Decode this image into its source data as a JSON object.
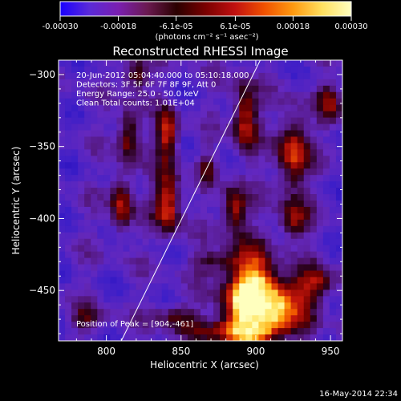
{
  "colorbar": {
    "tick_labels": [
      "-0.00030",
      "-0.00018",
      "-6.1e-05",
      "6.1e-05",
      "0.00018",
      "0.00030"
    ],
    "tick_values": [
      -0.0003,
      -0.00018,
      -6.1e-05,
      6.1e-05,
      0.00018,
      0.0003
    ],
    "range": [
      -0.0003,
      0.0003
    ],
    "units_label": "(photons cm⁻² s⁻¹ asec⁻²)",
    "gradient_stops": [
      "#1a00ff",
      "#5a2ad8",
      "#7a1fb0",
      "#6a1a50",
      "#2a0000",
      "#7a0000",
      "#c01010",
      "#f05000",
      "#ff9a10",
      "#ffe060",
      "#ffffc0"
    ]
  },
  "chart_data": {
    "type": "heatmap",
    "title": "Reconstructed RHESSI Image",
    "xlabel": "Heliocentric X (arcsec)",
    "ylabel": "Heliocentric Y (arcsec)",
    "xlim": [
      768,
      958
    ],
    "ylim": [
      -485,
      -290
    ],
    "x_ticks": [
      800,
      850,
      900,
      950
    ],
    "x_tick_labels": [
      "800",
      "850",
      "900",
      "950"
    ],
    "y_ticks": [
      -300,
      -350,
      -400,
      -450
    ],
    "y_tick_labels": [
      "−300",
      "−350",
      "−400",
      "−450"
    ],
    "annotations": [
      "20-Jun-2012 05:04:40.000 to 05:10:18.000",
      "Detectors: 3F 5F 6F 7F 8F 9F, Att 0",
      "Energy Range: 25.0 - 50.0 keV",
      "Clean     Total counts: 1.01E+04"
    ],
    "peak_label": "Position of Peak = [904,-461]",
    "peak": [
      904,
      -461
    ],
    "limb_line": [
      [
        810,
        -485
      ],
      [
        903,
        -290
      ]
    ],
    "blobs": [
      {
        "x": 906,
        "y": -461,
        "sx": 18,
        "sy": 14,
        "amp": 1.0
      },
      {
        "x": 898,
        "y": -452,
        "sx": 10,
        "sy": 22,
        "amp": 0.75
      },
      {
        "x": 887,
        "y": -478,
        "sx": 20,
        "sy": 6,
        "amp": 0.55
      },
      {
        "x": 841,
        "y": -388,
        "sx": 6,
        "sy": 16,
        "amp": 0.72
      },
      {
        "x": 841,
        "y": -342,
        "sx": 5,
        "sy": 12,
        "amp": 0.65
      },
      {
        "x": 815,
        "y": -342,
        "sx": 5,
        "sy": 13,
        "amp": 0.55
      },
      {
        "x": 810,
        "y": -390,
        "sx": 5,
        "sy": 14,
        "amp": 0.58
      },
      {
        "x": 820,
        "y": -300,
        "sx": 6,
        "sy": 8,
        "amp": 0.52
      },
      {
        "x": 893,
        "y": -330,
        "sx": 6,
        "sy": 18,
        "amp": 0.62
      },
      {
        "x": 886,
        "y": -394,
        "sx": 6,
        "sy": 12,
        "amp": 0.6
      },
      {
        "x": 925,
        "y": -355,
        "sx": 7,
        "sy": 20,
        "amp": 0.66
      },
      {
        "x": 925,
        "y": -402,
        "sx": 7,
        "sy": 9,
        "amp": 0.5
      },
      {
        "x": 940,
        "y": -445,
        "sx": 10,
        "sy": 8,
        "amp": 0.45
      },
      {
        "x": 876,
        "y": -430,
        "sx": 12,
        "sy": 6,
        "amp": 0.4
      },
      {
        "x": 787,
        "y": -470,
        "sx": 8,
        "sy": 6,
        "amp": 0.35
      },
      {
        "x": 845,
        "y": -468,
        "sx": 10,
        "sy": 6,
        "amp": 0.38
      },
      {
        "x": 868,
        "y": -365,
        "sx": 4,
        "sy": 8,
        "amp": 0.35
      },
      {
        "x": 950,
        "y": -320,
        "sx": 6,
        "sy": 10,
        "amp": 0.42
      }
    ]
  },
  "footer": {
    "timestamp": "16-May-2014 22:34"
  }
}
